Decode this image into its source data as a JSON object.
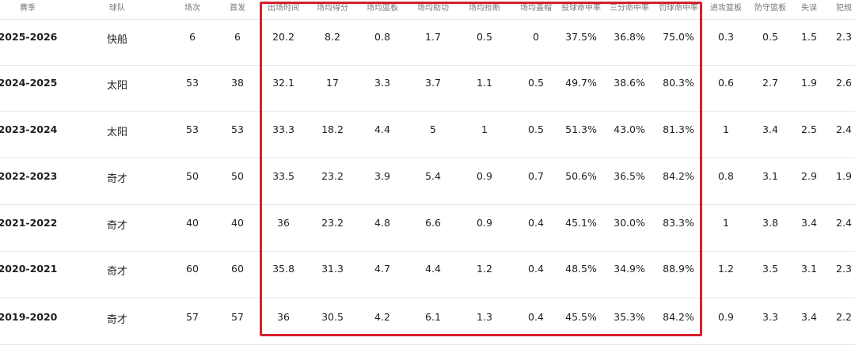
{
  "highlight_color": "#d6202b",
  "table": {
    "headers": [
      "赛季",
      "球队",
      "场次",
      "首发",
      "出场时间",
      "场均得分",
      "场均篮板",
      "场均助功",
      "场均抢断",
      "场均盖帽",
      "投球命中率",
      "三分命中率",
      "罚球命中率",
      "进攻篮板",
      "防守篮板",
      "失误",
      "犯规"
    ],
    "rows": [
      [
        "2025-2026",
        "快船",
        "6",
        "6",
        "20.2",
        "8.2",
        "0.8",
        "1.7",
        "0.5",
        "0",
        "37.5%",
        "36.8%",
        "75.0%",
        "0.3",
        "0.5",
        "1.5",
        "2.3"
      ],
      [
        "2024-2025",
        "太阳",
        "53",
        "38",
        "32.1",
        "17",
        "3.3",
        "3.7",
        "1.1",
        "0.5",
        "49.7%",
        "38.6%",
        "80.3%",
        "0.6",
        "2.7",
        "1.9",
        "2.6"
      ],
      [
        "2023-2024",
        "太阳",
        "53",
        "53",
        "33.3",
        "18.2",
        "4.4",
        "5",
        "1",
        "0.5",
        "51.3%",
        "43.0%",
        "81.3%",
        "1",
        "3.4",
        "2.5",
        "2.4"
      ],
      [
        "2022-2023",
        "奇才",
        "50",
        "50",
        "33.5",
        "23.2",
        "3.9",
        "5.4",
        "0.9",
        "0.7",
        "50.6%",
        "36.5%",
        "84.2%",
        "0.8",
        "3.1",
        "2.9",
        "1.9"
      ],
      [
        "2021-2022",
        "奇才",
        "40",
        "40",
        "36",
        "23.2",
        "4.8",
        "6.6",
        "0.9",
        "0.4",
        "45.1%",
        "30.0%",
        "83.3%",
        "1",
        "3.8",
        "3.4",
        "2.4"
      ],
      [
        "2020-2021",
        "奇才",
        "60",
        "60",
        "35.8",
        "31.3",
        "4.7",
        "4.4",
        "1.2",
        "0.4",
        "48.5%",
        "34.9%",
        "88.9%",
        "1.2",
        "3.5",
        "3.1",
        "2.3"
      ],
      [
        "2019-2020",
        "奇才",
        "57",
        "57",
        "36",
        "30.5",
        "4.2",
        "6.1",
        "1.3",
        "0.4",
        "45.5%",
        "35.3%",
        "84.2%",
        "0.9",
        "3.3",
        "3.4",
        "2.2"
      ]
    ]
  }
}
